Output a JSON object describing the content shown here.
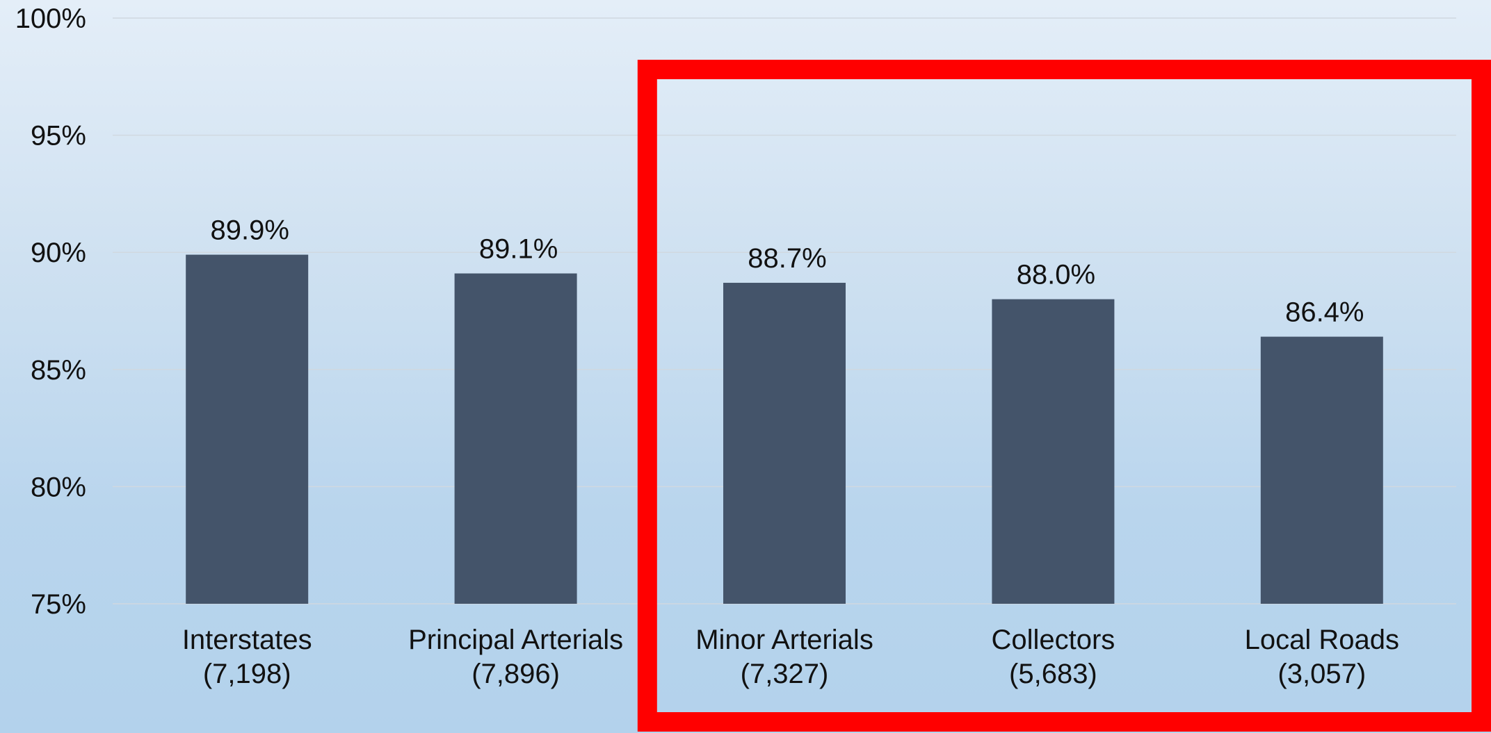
{
  "chart_data": {
    "type": "bar",
    "categories": [
      "Interstates",
      "Principal Arterials",
      "Minor Arterials",
      "Collectors",
      "Local Roads"
    ],
    "category_counts": [
      "(7,198)",
      "(7,896)",
      "(7,327)",
      "(5,683)",
      "(3,057)"
    ],
    "values": [
      89.9,
      89.1,
      88.7,
      88.0,
      86.4
    ],
    "data_labels": [
      "89.9%",
      "89.1%",
      "88.7%",
      "88.0%",
      "86.4%"
    ],
    "y_ticks": [
      75,
      80,
      85,
      90,
      95,
      100
    ],
    "y_tick_labels": [
      "75%",
      "80%",
      "85%",
      "90%",
      "95%",
      "100%"
    ],
    "ylim": [
      75,
      100
    ],
    "grid": true,
    "legend": "none",
    "title": "",
    "xlabel": "",
    "ylabel": "",
    "highlight": {
      "categories": [
        "Minor Arterials",
        "Collectors",
        "Local Roads"
      ],
      "style": "box"
    }
  },
  "colors": {
    "bar": "#44546a",
    "gridline": "#d0d8e0",
    "highlight_box": "#ff0000",
    "text": "#111111"
  }
}
